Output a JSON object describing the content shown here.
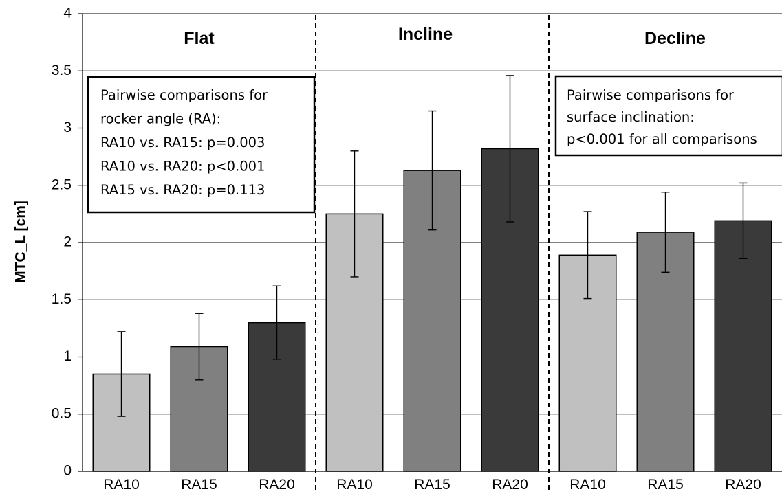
{
  "chart_data": {
    "type": "bar",
    "ylabel": "MTC_L [cm]",
    "ylim": [
      0,
      4
    ],
    "yticks": [
      "0",
      "0.5",
      "1",
      "1.5",
      "2",
      "2.5",
      "3",
      "3.5",
      "4"
    ],
    "grid": true,
    "groups": [
      {
        "name": "Flat",
        "bars": [
          {
            "label": "RA10",
            "value": 0.85,
            "err_low": 0.48,
            "err_high": 1.22,
            "color": "#c0c0c0"
          },
          {
            "label": "RA15",
            "value": 1.09,
            "err_low": 0.8,
            "err_high": 1.38,
            "color": "#808080"
          },
          {
            "label": "RA20",
            "value": 1.3,
            "err_low": 0.98,
            "err_high": 1.62,
            "color": "#3a3a3a"
          }
        ]
      },
      {
        "name": "Incline",
        "bars": [
          {
            "label": "RA10",
            "value": 2.25,
            "err_low": 1.7,
            "err_high": 2.8,
            "color": "#c0c0c0"
          },
          {
            "label": "RA15",
            "value": 2.63,
            "err_low": 2.11,
            "err_high": 3.15,
            "color": "#808080"
          },
          {
            "label": "RA20",
            "value": 2.82,
            "err_low": 2.18,
            "err_high": 3.46,
            "color": "#3a3a3a"
          }
        ]
      },
      {
        "name": "Decline",
        "bars": [
          {
            "label": "RA10",
            "value": 1.89,
            "err_low": 1.51,
            "err_high": 2.27,
            "color": "#c0c0c0"
          },
          {
            "label": "RA15",
            "value": 2.09,
            "err_low": 1.74,
            "err_high": 2.44,
            "color": "#808080"
          },
          {
            "label": "RA20",
            "value": 2.19,
            "err_low": 1.86,
            "err_high": 2.52,
            "color": "#3a3a3a"
          }
        ]
      }
    ],
    "annotations": [
      {
        "id": "rocker-angle-note",
        "lines": [
          "Pairwise comparisons for",
          "rocker angle (RA):",
          "RA10 vs. RA15: p=0.003",
          "RA10 vs. RA20: p<0.001",
          "RA15 vs. RA20: p=0.113"
        ]
      },
      {
        "id": "surface-inclination-note",
        "lines": [
          "Pairwise comparisons for",
          "surface inclination:",
          "p<0.001 for all comparisons"
        ]
      }
    ]
  }
}
